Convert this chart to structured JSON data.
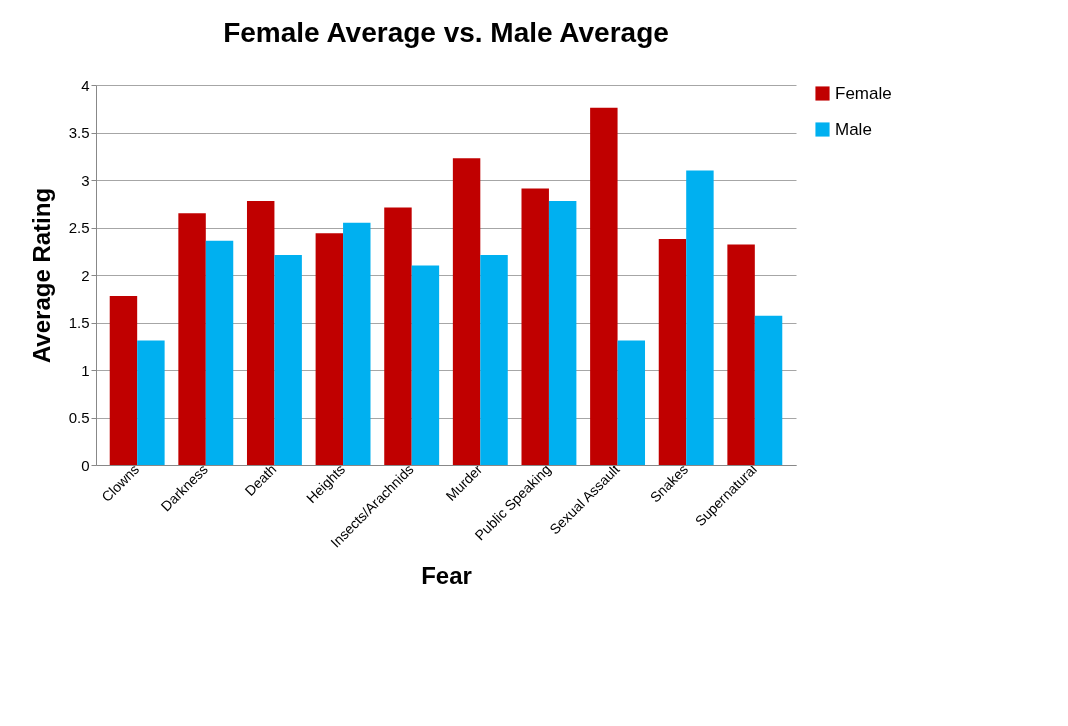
{
  "chart_data": {
    "type": "bar",
    "title": "Female Average vs. Male Average",
    "xlabel": "Fear",
    "ylabel": "Average Rating",
    "categories": [
      "Clowns",
      "Darkness",
      "Death",
      "Heights",
      "Insects/Arachnids",
      "Murder",
      "Public Speaking",
      "Sexual Assault",
      "Snakes",
      "Supernatural"
    ],
    "series": [
      {
        "name": "Female",
        "color": "#c00000",
        "values": [
          1.78,
          2.65,
          2.78,
          2.44,
          2.71,
          3.23,
          2.91,
          3.76,
          2.38,
          2.32
        ]
      },
      {
        "name": "Male",
        "color": "#00b0f0",
        "values": [
          1.31,
          2.36,
          2.21,
          2.55,
          2.1,
          2.21,
          2.78,
          1.31,
          3.1,
          1.57
        ]
      }
    ],
    "ylim": [
      0,
      4
    ],
    "yticks": [
      0,
      0.5,
      1,
      1.5,
      2,
      2.5,
      3,
      3.5,
      4
    ],
    "grid": "y",
    "legend": "right"
  }
}
